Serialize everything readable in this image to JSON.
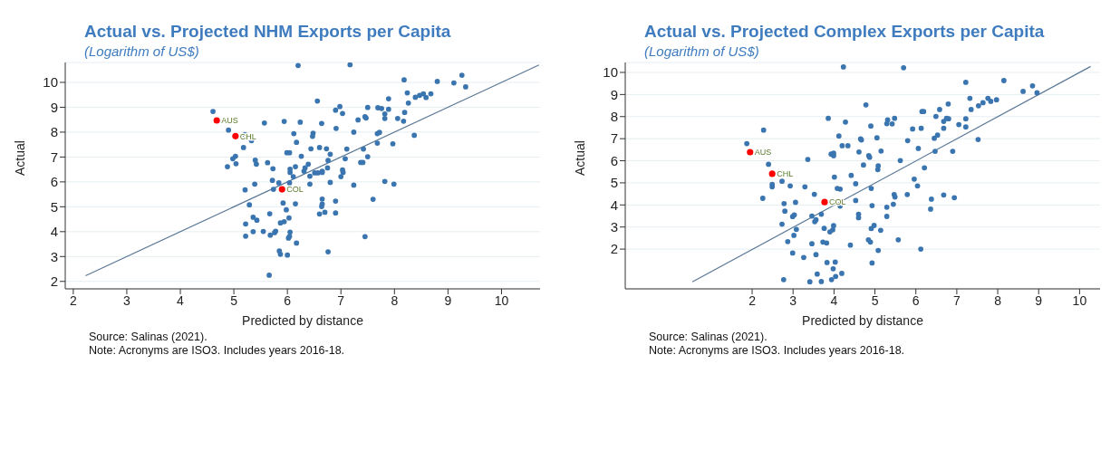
{
  "chart_data": [
    {
      "type": "scatter",
      "title": "Actual vs. Projected NHM Exports per Capita",
      "subtitle": "(Logarithm of US$)",
      "xlabel": "Predicted by distance",
      "ylabel": "Actual",
      "xlim": [
        1.85,
        10.72
      ],
      "ylim": [
        1.7,
        10.8
      ],
      "xticks": [
        2,
        3,
        4,
        5,
        6,
        7,
        8,
        9,
        10
      ],
      "yticks": [
        2,
        3,
        4,
        5,
        6,
        7,
        8,
        9,
        10
      ],
      "grid": "y",
      "legend": false,
      "marker": "circle",
      "annotations": [
        {
          "text": "AUS",
          "x": 4.68,
          "y": 8.47
        },
        {
          "text": "CHL",
          "x": 5.03,
          "y": 7.84
        },
        {
          "text": "COL",
          "x": 5.9,
          "y": 5.7
        },
        "Source: Salinas (2021).",
        "Note: Acronyms are ISO3. Includes years 2016-18."
      ],
      "series": [
        {
          "color": "#3a75b0",
          "x": [
            6.2,
            7.17,
            8.18,
            8.8,
            9.11,
            9.26,
            9.33,
            8.24,
            8.39,
            8.47,
            8.54,
            8.59,
            8.68,
            8.26,
            7.89,
            8.19,
            8.17,
            8.06,
            8.37,
            7.82,
            7.82,
            7.89,
            7.69,
            7.76,
            7.5,
            7.47,
            7.45,
            7.32,
            7.97,
            7.72,
            7.68,
            7.68,
            7.82,
            7.99,
            7.6,
            7.45,
            7.5,
            7.42,
            7.37,
            7.41,
            7.24,
            7.24,
            7.11,
            7.08,
            7.03,
            7.04,
            7.0,
            6.98,
            7.03,
            6.9,
            6.91,
            6.56,
            6.64,
            6.48,
            6.47,
            6.44,
            6.6,
            6.73,
            6.8,
            6.76,
            6.75,
            6.65,
            6.65,
            6.57,
            6.51,
            6.42,
            6.39,
            6.33,
            6.31,
            6.26,
            6.15,
            6.11,
            6.05,
            6.05,
            6.17,
            6.12,
            5.99,
            6.04,
            6.24,
            5.94,
            5.57,
            6.8,
            6.42,
            6.04,
            5.84,
            5.72,
            5.74,
            5.21,
            4.61,
            4.9,
            5.21,
            5.33,
            5.18,
            5.03,
            4.98,
            5.04,
            4.88,
            5.4,
            5.42,
            5.63,
            5.73,
            5.39,
            6.6,
            6.7,
            6.9,
            6.9,
            6.65,
            6.65,
            6.64,
            6.15,
            5.92,
            5.98,
            6.03,
            5.94,
            5.87,
            5.67,
            5.29,
            5.22,
            5.36,
            5.43,
            5.36,
            5.55,
            5.76,
            5.78,
            5.68,
            5.22,
            6.05,
            6.04,
            6.02,
            6.17,
            5.85,
            5.87,
            6.0,
            6.76,
            5.66
          ],
          "values": [
            10.68,
            10.71,
            10.1,
            10.04,
            9.98,
            10.29,
            9.82,
            9.58,
            9.4,
            9.48,
            9.54,
            9.39,
            9.54,
            9.17,
            9.34,
            8.79,
            8.44,
            8.55,
            7.87,
            8.73,
            8.55,
            8.92,
            8.98,
            8.95,
            8.99,
            8.57,
            8.62,
            8.49,
            7.53,
            7.99,
            7.94,
            7.56,
            6.02,
            5.91,
            5.3,
            3.8,
            7.01,
            7.32,
            6.78,
            6.78,
            5.87,
            8.0,
            7.32,
            6.93,
            6.48,
            6.38,
            6.21,
            9.03,
            8.75,
            8.88,
            8.15,
            9.25,
            8.35,
            7.96,
            7.83,
            7.33,
            7.38,
            7.33,
            7.11,
            6.86,
            6.56,
            6.43,
            6.38,
            6.36,
            6.36,
            6.23,
            6.71,
            6.56,
            6.43,
            7.03,
            6.61,
            6.21,
            6.51,
            6.38,
            7.59,
            7.94,
            7.17,
            7.17,
            8.4,
            8.43,
            8.37,
            5.98,
            5.91,
            5.96,
            5.96,
            6.06,
            5.7,
            5.68,
            8.83,
            8.08,
            7.9,
            7.66,
            7.38,
            7.03,
            6.93,
            6.73,
            6.61,
            6.87,
            6.71,
            6.77,
            6.53,
            5.91,
            4.71,
            4.78,
            4.75,
            5.23,
            5.31,
            5.11,
            5.01,
            5.12,
            5.15,
            4.88,
            4.55,
            4.4,
            4.35,
            4.72,
            5.08,
            4.31,
            4.58,
            4.46,
            4.0,
            4.01,
            3.96,
            4.02,
            3.86,
            3.82,
            3.98,
            3.81,
            3.74,
            3.54,
            3.22,
            3.09,
            3.06,
            3.19,
            2.25
          ]
        },
        {
          "color": "#ff0000",
          "x": [
            4.68,
            5.03,
            5.9
          ],
          "values": [
            8.47,
            7.84,
            5.7
          ]
        },
        {
          "type": "line",
          "marker": "none",
          "color": "#5a7896",
          "x": [
            2.23,
            10.7
          ],
          "values": [
            2.23,
            10.7
          ]
        }
      ]
    },
    {
      "type": "scatter",
      "title": "Actual vs. Projected Complex Exports per Capita",
      "subtitle": "(Logarithm of US$)",
      "xlabel": "Predicted by distance",
      "ylabel": "Actual",
      "xlim": [
        -1.1,
        10.5
      ],
      "ylim": [
        0.2,
        10.45
      ],
      "xticks": [
        2,
        3,
        4,
        5,
        6,
        7,
        8,
        9,
        10
      ],
      "yticks": [
        2,
        3,
        4,
        5,
        6,
        7,
        8,
        9,
        10
      ],
      "grid": "y",
      "legend": false,
      "marker": "circle",
      "annotations": [
        {
          "text": "AUS",
          "x": 1.95,
          "y": 6.39
        },
        {
          "text": "CHL",
          "x": 2.49,
          "y": 5.41
        },
        {
          "text": "COL",
          "x": 3.77,
          "y": 4.13
        },
        "Source: Salinas (2021).",
        "Note: Acronyms are ISO3. Includes years 2016-18."
      ],
      "series": [
        {
          "color": "#3a75b0",
          "x": [
            4.23,
            5.7,
            8.15,
            7.22,
            8.85,
            8.62,
            8.96,
            7.32,
            7.76,
            7.97,
            7.83,
            7.64,
            7.53,
            7.35,
            6.79,
            6.58,
            6.15,
            6.19,
            6.49,
            6.75,
            6.8,
            6.68,
            7.22,
            7.05,
            7.22,
            6.68,
            6.13,
            5.92,
            7.52,
            6.53,
            6.45,
            6.06,
            6.9,
            6.47,
            6.21,
            5.96,
            6.04,
            6.38,
            6.68,
            6.94,
            6.36,
            6.12,
            5.8,
            5.62,
            5.79,
            5.57,
            5.48,
            5.31,
            5.29,
            5.42,
            5.15,
            5.05,
            5.08,
            5.07,
            5.47,
            5.49,
            5.45,
            5.29,
            5.29,
            5.14,
            4.98,
            4.91,
            4.89,
            4.84,
            5.08,
            4.93,
            4.91,
            4.93,
            4.78,
            4.9,
            4.85,
            4.87,
            4.72,
            4.61,
            4.67,
            4.65,
            4.53,
            4.53,
            4.6,
            4.6,
            4.4,
            4.28,
            4.34,
            4.2,
            4.12,
            3.86,
            4.42,
            4.08,
            4.15,
            4.15,
            3.93,
            3.99,
            3.99,
            4.01,
            3.36,
            3.29,
            3.52,
            3.69,
            3.46,
            3.56,
            3.53,
            3.99,
            3.97,
            3.76,
            3.9,
            3.46,
            3.73,
            3.82,
            3.56,
            3.26,
            2.99,
            3.83,
            4.03,
            3.98,
            4.04,
            3.94,
            4.19,
            3.59,
            3.69,
            3.41,
            2.77,
            2.87,
            3.02,
            3.08,
            2.99,
            3.03,
            3.06,
            2.78,
            2.8,
            2.73,
            2.93,
            2.73,
            2.49,
            2.49,
            2.26,
            2.4,
            2.28,
            1.87
          ],
          "values": [
            10.25,
            10.21,
            9.63,
            9.55,
            9.39,
            9.14,
            9.08,
            8.83,
            8.83,
            8.76,
            8.69,
            8.63,
            8.49,
            8.32,
            8.57,
            8.32,
            8.23,
            8.23,
            8.01,
            7.92,
            7.9,
            7.78,
            7.9,
            7.64,
            7.53,
            7.47,
            7.47,
            7.44,
            6.96,
            7.16,
            7.02,
            6.56,
            6.43,
            6.43,
            5.68,
            5.17,
            4.86,
            4.26,
            4.45,
            4.33,
            3.81,
            2.0,
            6.91,
            6.01,
            4.47,
            2.42,
            7.92,
            7.85,
            7.68,
            7.67,
            6.44,
            7.04,
            5.77,
            5.6,
            4.47,
            4.36,
            4.03,
            3.9,
            3.48,
            2.85,
            3.07,
            2.93,
            2.32,
            2.42,
            1.94,
            1.37,
            4.75,
            3.97,
            8.53,
            7.57,
            6.23,
            6.16,
            5.81,
            6.4,
            6.94,
            6.99,
            4.96,
            4.2,
            3.58,
            3.42,
            2.18,
            7.75,
            6.68,
            6.68,
            7.12,
            7.92,
            5.34,
            4.75,
            4.72,
            3.95,
            6.3,
            6.23,
            6.34,
            5.26,
            6.06,
            4.82,
            4.48,
            3.58,
            3.5,
            3.33,
            3.24,
            3.06,
            2.87,
            2.94,
            2.78,
            2.24,
            2.32,
            2.28,
            1.75,
            1.62,
            1.82,
            1.39,
            1.41,
            1.11,
            0.76,
            0.62,
            0.9,
            0.87,
            0.53,
            0.52,
            0.62,
            2.34,
            2.62,
            2.89,
            3.47,
            3.55,
            4.12,
            4.06,
            3.72,
            3.13,
            4.86,
            5.07,
            4.93,
            4.82,
            4.3,
            5.84,
            7.39,
            6.78
          ]
        },
        {
          "color": "#ff0000",
          "x": [
            1.95,
            2.49,
            3.77
          ],
          "values": [
            6.39,
            5.41,
            4.13
          ]
        },
        {
          "type": "line",
          "marker": "none",
          "color": "#5a7896",
          "x": [
            0.54,
            10.27
          ],
          "values": [
            0.52,
            10.27
          ]
        }
      ]
    }
  ]
}
